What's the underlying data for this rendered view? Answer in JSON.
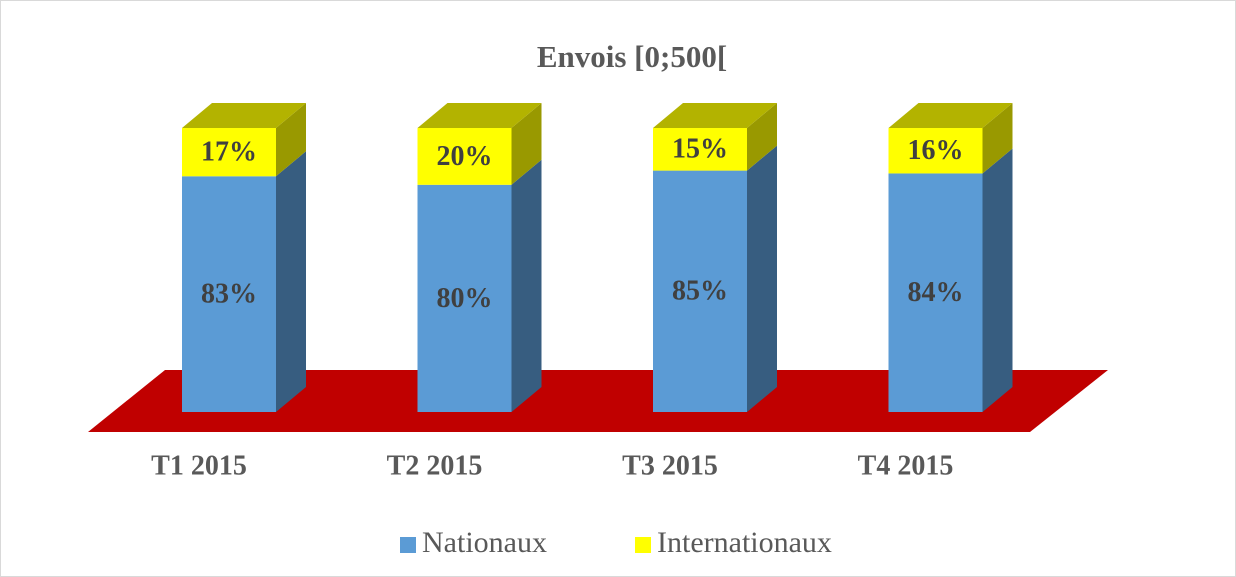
{
  "chart_data": {
    "type": "bar3d_stacked",
    "title": "Envois [0;500[",
    "categories": [
      "T1 2015",
      "T2 2015",
      "T3 2015",
      "T4 2015"
    ],
    "series": [
      {
        "name": "Nationaux",
        "color": "#5b9bd5",
        "values": [
          83,
          80,
          85,
          84
        ],
        "value_labels": [
          "83%",
          "80%",
          "85%",
          "84%"
        ]
      },
      {
        "name": "Internationaux",
        "color": "#ffff00",
        "values": [
          17,
          20,
          15,
          16
        ],
        "value_labels": [
          "17%",
          "20%",
          "15%",
          "16%"
        ]
      }
    ],
    "floor_color": "#c00000",
    "legend": "bottom"
  }
}
